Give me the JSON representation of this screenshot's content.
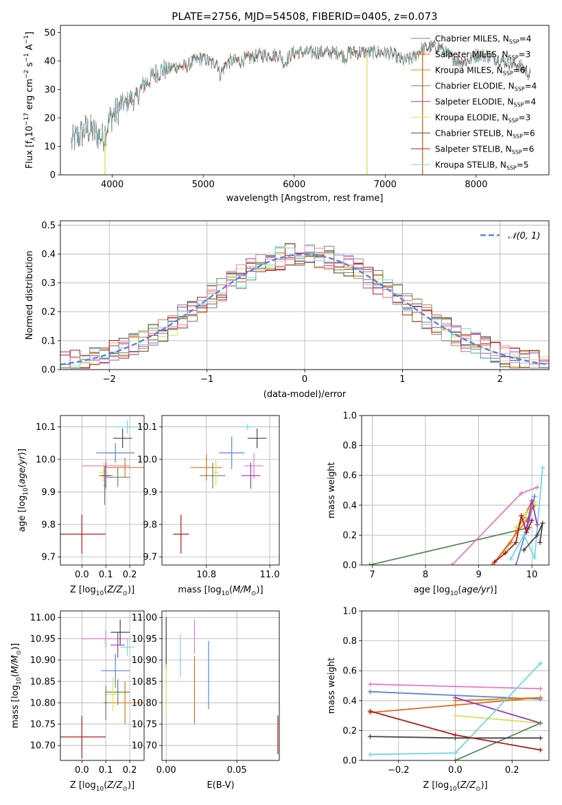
{
  "figure_title": "PLATE=2756, MJD=54508, FIBERID=0405, z=0.073",
  "colors": {
    "Chabrier MILES": "#7f7f7f",
    "Salpeter MILES": "#e0701e",
    "Kroupa MILES": "#d4861c",
    "Chabrier ELODIE": "#5a8a5a",
    "Salpeter ELODIE": "#9a35c0",
    "Kroupa ELODIE": "#dede55",
    "Chabrier STELIB": "#444444",
    "Salpeter STELIB": "#b01818",
    "Kroupa STELIB": "#6fd8e0",
    "pink": "#e878c0",
    "blue": "#5a84dc",
    "normal": "#5a84dc"
  },
  "chart_data": [
    {
      "type": "line",
      "id": "spectrum",
      "xlabel": "wavelength [Angstrom, rest frame]",
      "ylabel_parts": [
        "Flux [f",
        "λ",
        "10",
        "−17",
        " erg cm",
        "−2",
        " s",
        "−1",
        " A",
        "−1",
        "]"
      ],
      "xlim": [
        3430,
        8800
      ],
      "ylim": [
        0,
        52.5
      ],
      "xticks": [
        4000,
        5000,
        6000,
        7000,
        8000
      ],
      "yticks": [
        0,
        10,
        20,
        30,
        40,
        50
      ],
      "legend": [
        {
          "label": "Chabrier MILES, N",
          "sub": "SSP",
          "suffix": "=4",
          "color": "#7f7f7f"
        },
        {
          "label": "Salpeter MILES, N",
          "sub": "SSP",
          "suffix": "=3",
          "color": "#e0701e"
        },
        {
          "label": "Kroupa MILES, N",
          "sub": "SSP",
          "suffix": "=6",
          "color": "#d4861c"
        },
        {
          "label": "Chabrier ELODIE, N",
          "sub": "SSP",
          "suffix": "=4",
          "color": "#5a8a5a"
        },
        {
          "label": "Salpeter ELODIE, N",
          "sub": "SSP",
          "suffix": "=4",
          "color": "#9a35c0"
        },
        {
          "label": "Kroupa ELODIE, N",
          "sub": "SSP",
          "suffix": "=3",
          "color": "#dede55"
        },
        {
          "label": "Chabrier STELIB, N",
          "sub": "SSP",
          "suffix": "=6",
          "color": "#444444"
        },
        {
          "label": "Salpeter STELIB, N",
          "sub": "SSP",
          "suffix": "=6",
          "color": "#b01818"
        },
        {
          "label": "Kroupa STELIB, N",
          "sub": "SSP",
          "suffix": "=5",
          "color": "#6fd8e0"
        }
      ],
      "envelope": [
        [
          3550,
          11
        ],
        [
          3600,
          13
        ],
        [
          3650,
          14
        ],
        [
          3700,
          16
        ],
        [
          3750,
          16
        ],
        [
          3800,
          15
        ],
        [
          3850,
          14
        ],
        [
          3900,
          13
        ],
        [
          3950,
          18
        ],
        [
          4000,
          21
        ],
        [
          4050,
          22
        ],
        [
          4100,
          25
        ],
        [
          4150,
          25
        ],
        [
          4200,
          27
        ],
        [
          4250,
          26
        ],
        [
          4300,
          29
        ],
        [
          4350,
          32
        ],
        [
          4400,
          33
        ],
        [
          4450,
          35
        ],
        [
          4500,
          36
        ],
        [
          4550,
          37
        ],
        [
          4600,
          37
        ],
        [
          4700,
          38
        ],
        [
          4800,
          38
        ],
        [
          4900,
          40
        ],
        [
          5000,
          41
        ],
        [
          5100,
          39
        ],
        [
          5150,
          40
        ],
        [
          5180,
          35
        ],
        [
          5250,
          39
        ],
        [
          5300,
          40
        ],
        [
          5400,
          40
        ],
        [
          5500,
          41
        ],
        [
          5600,
          42
        ],
        [
          5700,
          42
        ],
        [
          5800,
          42
        ],
        [
          5850,
          42
        ],
        [
          5890,
          39
        ],
        [
          5950,
          42
        ],
        [
          6000,
          43
        ],
        [
          6100,
          43
        ],
        [
          6200,
          43
        ],
        [
          6300,
          43
        ],
        [
          6400,
          43
        ],
        [
          6500,
          43
        ],
        [
          6563,
          41
        ],
        [
          6600,
          43
        ],
        [
          6700,
          43
        ],
        [
          6800,
          43
        ],
        [
          6900,
          43
        ],
        [
          7000,
          43
        ],
        [
          7100,
          42
        ],
        [
          7200,
          40
        ],
        [
          7300,
          41
        ],
        [
          7400,
          44
        ],
        [
          7500,
          45
        ],
        [
          7600,
          45
        ],
        [
          7700,
          42
        ],
        [
          7800,
          40
        ],
        [
          7900,
          40
        ],
        [
          8000,
          42
        ],
        [
          8100,
          42
        ],
        [
          8200,
          41
        ],
        [
          8300,
          40
        ],
        [
          8400,
          39
        ],
        [
          8500,
          38
        ],
        [
          8600,
          35
        ]
      ],
      "spikes": [
        {
          "x": 3920,
          "y": 0,
          "color": "#dede55"
        },
        {
          "x": 6800,
          "y": 0,
          "color": "#dede55"
        },
        {
          "x": 7410,
          "y": 0,
          "color": "#e0701e"
        }
      ]
    },
    {
      "type": "line",
      "id": "residuals",
      "xlabel": "(data-model)/error",
      "ylabel": "Normed distribution",
      "xlim": [
        -2.5,
        2.5
      ],
      "ylim": [
        0,
        0.515
      ],
      "xticks": [
        -2,
        -1,
        0,
        1,
        2
      ],
      "yticks": [
        0.0,
        0.1,
        0.2,
        0.3,
        0.4,
        0.5
      ],
      "legend": [
        {
          "label": "𝒩(0, 1)",
          "color": "#5a84dc",
          "style": "dashed"
        }
      ],
      "normal_pdf": {
        "mu": 0,
        "sigma": 1
      }
    },
    {
      "type": "scatter",
      "id": "age-vs-Z",
      "xlabel": "Z [log10(Z/Z☉)]",
      "ylabel": "age  [log10(age/yr)]",
      "xlim": [
        -0.09,
        0.26
      ],
      "ylim": [
        9.675,
        10.135
      ],
      "xticks": [
        0.0,
        0.1,
        0.2
      ],
      "yticks": [
        9.7,
        9.8,
        9.9,
        10.0,
        10.1
      ],
      "points": [
        {
          "x": 0.0,
          "y": 9.77,
          "xerr": 0.1,
          "yerr": 0.06,
          "color": "#b01818"
        },
        {
          "x": 0.1,
          "y": 9.98,
          "xerr": 0.1,
          "yerr": 0.02,
          "color": "#e878c0"
        },
        {
          "x": 0.14,
          "y": 10.02,
          "xerr": 0.08,
          "yerr": 0.03,
          "color": "#5a84dc"
        },
        {
          "x": 0.18,
          "y": 9.975,
          "xerr": 0.08,
          "yerr": 0.03,
          "color": "#e0701e"
        },
        {
          "x": 0.19,
          "y": 10.1,
          "xerr": 0.05,
          "yerr": 0.02,
          "color": "#6fd8e0"
        },
        {
          "x": 0.17,
          "y": 10.065,
          "xerr": 0.04,
          "yerr": 0.03,
          "color": "#444444"
        },
        {
          "x": 0.1,
          "y": 9.95,
          "xerr": 0.03,
          "yerr": 0.03,
          "color": "#d4861c"
        },
        {
          "x": 0.15,
          "y": 9.945,
          "xerr": 0.05,
          "yerr": 0.03,
          "color": "#5a8a5a"
        },
        {
          "x": 0.09,
          "y": 9.96,
          "xerr": 0.02,
          "yerr": 0.03,
          "color": "#dede55"
        },
        {
          "x": 0.095,
          "y": 9.92,
          "xerr": 0.005,
          "yerr": 0.06,
          "color": "#5a8a5a"
        },
        {
          "x": 0.1,
          "y": 9.95,
          "xerr": 0.02,
          "yerr": 0.04,
          "color": "#9a35c0"
        }
      ]
    },
    {
      "type": "scatter",
      "id": "age-vs-mass",
      "xlabel": "mass [log10(M/M☉)]",
      "ylabel": "",
      "xlim": [
        10.66,
        11.03
      ],
      "ylim": [
        9.675,
        10.135
      ],
      "xticks": [
        10.8,
        11.0
      ],
      "yticks": [
        9.7,
        9.8,
        9.9,
        10.0,
        10.1
      ],
      "points": [
        {
          "x": 10.72,
          "y": 9.77,
          "xerr": 0.025,
          "yerr": 0.06,
          "color": "#b01818"
        },
        {
          "x": 10.95,
          "y": 9.98,
          "xerr": 0.03,
          "yerr": 0.04,
          "color": "#e878c0"
        },
        {
          "x": 10.88,
          "y": 10.02,
          "xerr": 0.04,
          "yerr": 0.05,
          "color": "#5a84dc"
        },
        {
          "x": 10.8,
          "y": 9.975,
          "xerr": 0.05,
          "yerr": 0.04,
          "color": "#e0701e"
        },
        {
          "x": 10.93,
          "y": 10.1,
          "xerr": 0.02,
          "yerr": 0.01,
          "color": "#6fd8e0"
        },
        {
          "x": 10.96,
          "y": 10.065,
          "xerr": 0.03,
          "yerr": 0.03,
          "color": "#444444"
        },
        {
          "x": 10.82,
          "y": 9.95,
          "xerr": 0.04,
          "yerr": 0.04,
          "color": "#5a8a5a"
        },
        {
          "x": 10.83,
          "y": 9.96,
          "xerr": 0.01,
          "yerr": 0.04,
          "color": "#dede55"
        },
        {
          "x": 10.94,
          "y": 9.95,
          "xerr": 0.03,
          "yerr": 0.04,
          "color": "#9a35c0"
        }
      ]
    },
    {
      "type": "line",
      "id": "weight-vs-age",
      "xlabel": "age  [log10(age/yr)]",
      "ylabel": "mass weight",
      "xlim": [
        6.8,
        10.32
      ],
      "ylim": [
        0,
        1.0
      ],
      "xticks": [
        7,
        8,
        9,
        10
      ],
      "yticks": [
        0.0,
        0.2,
        0.4,
        0.6,
        0.8,
        1.0
      ],
      "series": [
        {
          "color": "#5a8a5a",
          "points": [
            [
              6.95,
              0.0
            ],
            [
              9.95,
              0.25
            ]
          ]
        },
        {
          "color": "#e878c0",
          "points": [
            [
              8.5,
              0.0
            ],
            [
              9.8,
              0.48
            ],
            [
              10.1,
              0.52
            ]
          ]
        },
        {
          "color": "#5a84dc",
          "points": [
            [
              9.7,
              0.0
            ],
            [
              9.95,
              0.3
            ],
            [
              10.05,
              0.46
            ]
          ]
        },
        {
          "color": "#6fd8e0",
          "points": [
            [
              9.6,
              0.04
            ],
            [
              9.85,
              0.2
            ],
            [
              10.05,
              0.05
            ],
            [
              10.2,
              0.65
            ]
          ]
        },
        {
          "color": "#e0701e",
          "points": [
            [
              9.25,
              0.0
            ],
            [
              9.6,
              0.15
            ],
            [
              9.85,
              0.32
            ],
            [
              10.0,
              0.43
            ]
          ]
        },
        {
          "color": "#d4861c",
          "points": [
            [
              9.3,
              0.02
            ],
            [
              9.9,
              0.3
            ],
            [
              10.05,
              0.4
            ]
          ]
        },
        {
          "color": "#dede55",
          "points": [
            [
              9.7,
              0.25
            ],
            [
              9.9,
              0.35
            ],
            [
              10.05,
              0.42
            ]
          ]
        },
        {
          "color": "#9a35c0",
          "points": [
            [
              9.9,
              0.25
            ],
            [
              10.0,
              0.43
            ],
            [
              10.1,
              0.27
            ]
          ]
        },
        {
          "color": "#444444",
          "points": [
            [
              9.85,
              0.1
            ],
            [
              10.1,
              0.2
            ],
            [
              10.2,
              0.28
            ],
            [
              10.15,
              0.15
            ]
          ]
        },
        {
          "color": "#b01818",
          "points": [
            [
              9.3,
              0.02
            ],
            [
              9.5,
              0.08
            ],
            [
              9.7,
              0.15
            ],
            [
              9.8,
              0.33
            ],
            [
              9.9,
              0.22
            ],
            [
              10.0,
              0.3
            ]
          ]
        }
      ]
    },
    {
      "type": "scatter",
      "id": "mass-vs-Z",
      "xlabel": "Z [log10(Z/Z☉)]",
      "ylabel": "mass [log10(M/M☉)]",
      "xlim": [
        -0.09,
        0.26
      ],
      "ylim": [
        10.665,
        11.015
      ],
      "xticks": [
        0.0,
        0.1,
        0.2
      ],
      "yticks": [
        10.7,
        10.75,
        10.8,
        10.85,
        10.9,
        10.95,
        11.0
      ],
      "points": [
        {
          "x": 0.0,
          "y": 10.72,
          "xerr": 0.1,
          "yerr": 0.05,
          "color": "#b01818"
        },
        {
          "x": 0.1,
          "y": 10.95,
          "xerr": 0.1,
          "yerr": 0.02,
          "color": "#e878c0"
        },
        {
          "x": 0.14,
          "y": 10.875,
          "xerr": 0.06,
          "yerr": 0.04,
          "color": "#5a84dc"
        },
        {
          "x": 0.18,
          "y": 10.8,
          "xerr": 0.08,
          "yerr": 0.05,
          "color": "#e0701e"
        },
        {
          "x": 0.19,
          "y": 10.93,
          "xerr": 0.03,
          "yerr": 0.02,
          "color": "#6fd8e0"
        },
        {
          "x": 0.16,
          "y": 10.965,
          "xerr": 0.04,
          "yerr": 0.03,
          "color": "#444444"
        },
        {
          "x": 0.15,
          "y": 10.825,
          "xerr": 0.05,
          "yerr": 0.03,
          "color": "#5a8a5a"
        },
        {
          "x": 0.13,
          "y": 10.82,
          "xerr": 0.03,
          "yerr": 0.04,
          "color": "#dede55"
        },
        {
          "x": 0.1,
          "y": 10.8,
          "xerr": 0.01,
          "yerr": 0.04,
          "color": "#5a8a5a"
        },
        {
          "x": 0.15,
          "y": 10.935,
          "xerr": 0.03,
          "yerr": 0.03,
          "color": "#9a35c0"
        }
      ]
    },
    {
      "type": "scatter",
      "id": "mass-vs-ebv",
      "xlabel": "E(B-V)",
      "ylabel": "",
      "xlim": [
        -0.003,
        0.08
      ],
      "ylim": [
        10.665,
        11.015
      ],
      "xticks": [
        0.0,
        0.05
      ],
      "yticks": [
        10.7,
        10.75,
        10.8,
        10.85,
        10.9,
        10.95,
        11.0
      ],
      "points": [
        {
          "x": 0.0,
          "y": 10.94,
          "yerr": 0.06,
          "color": "#444444"
        },
        {
          "x": 0.0,
          "y": 10.83,
          "yerr": 0.06,
          "color": "#dede55"
        },
        {
          "x": 0.01,
          "y": 10.91,
          "yerr": 0.05,
          "color": "#6fd8e0"
        },
        {
          "x": 0.02,
          "y": 10.955,
          "yerr": 0.04,
          "color": "#e878c0"
        },
        {
          "x": 0.02,
          "y": 10.83,
          "yerr": 0.08,
          "color": "#e0701e"
        },
        {
          "x": 0.03,
          "y": 10.865,
          "yerr": 0.08,
          "color": "#5a84dc"
        },
        {
          "x": 0.079,
          "y": 10.725,
          "yerr": 0.045,
          "color": "#b01818"
        }
      ]
    },
    {
      "type": "line",
      "id": "weight-vs-Z",
      "xlabel": "Z [log10(Z/Z☉)]",
      "ylabel": "mass weight",
      "xlim": [
        -0.33,
        0.33
      ],
      "ylim": [
        0,
        1.0
      ],
      "xticks": [
        -0.2,
        0.0,
        0.2
      ],
      "yticks": [
        0.0,
        0.2,
        0.4,
        0.6,
        0.8,
        1.0
      ],
      "series": [
        {
          "color": "#e878c0",
          "points": [
            [
              -0.3,
              0.51
            ],
            [
              0.3,
              0.48
            ]
          ]
        },
        {
          "color": "#5a84dc",
          "points": [
            [
              -0.3,
              0.46
            ],
            [
              0.3,
              0.41
            ]
          ]
        },
        {
          "color": "#e0701e",
          "points": [
            [
              -0.3,
              0.32
            ],
            [
              0.0,
              0.37
            ],
            [
              0.3,
              0.42
            ]
          ]
        },
        {
          "color": "#d4861c",
          "points": [
            [
              0.0,
              0.4
            ],
            [
              0.3,
              0.42
            ]
          ]
        },
        {
          "color": "#dede55",
          "points": [
            [
              0.0,
              0.3
            ],
            [
              0.3,
              0.25
            ]
          ]
        },
        {
          "color": "#9a35c0",
          "points": [
            [
              0.0,
              0.42
            ],
            [
              0.3,
              0.25
            ]
          ]
        },
        {
          "color": "#6fd8e0",
          "points": [
            [
              -0.3,
              0.04
            ],
            [
              0.0,
              0.05
            ],
            [
              0.3,
              0.65
            ]
          ]
        },
        {
          "color": "#5a8a5a",
          "points": [
            [
              0.0,
              0.0
            ],
            [
              0.3,
              0.25
            ]
          ]
        },
        {
          "color": "#444444",
          "points": [
            [
              -0.3,
              0.16
            ],
            [
              0.0,
              0.15
            ],
            [
              0.3,
              0.15
            ]
          ]
        },
        {
          "color": "#b01818",
          "points": [
            [
              -0.3,
              0.33
            ],
            [
              0.0,
              0.17
            ],
            [
              0.3,
              0.07
            ]
          ]
        }
      ]
    }
  ]
}
